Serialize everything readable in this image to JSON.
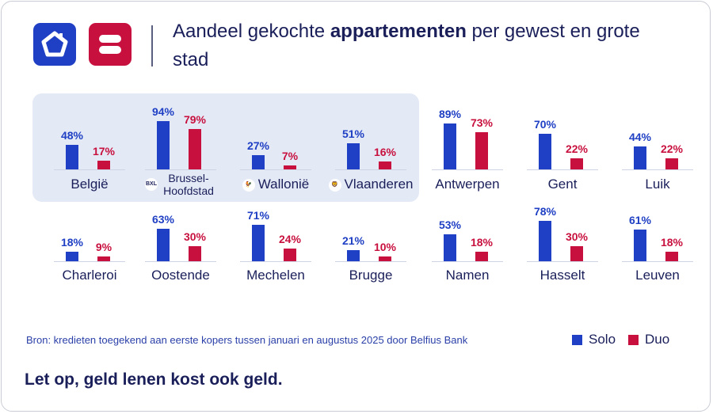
{
  "header": {
    "title_pre": "Aandeel gekochte ",
    "title_bold": "appartementen",
    "title_post": " per gewest en grote stad"
  },
  "colors": {
    "solo": "#1f3fc4",
    "duo": "#c8103e",
    "text": "#1a1f5a",
    "highlight": "#e3e9f5"
  },
  "chart_data": {
    "type": "bar",
    "title": "Aandeel gekochte appartementen per gewest en grote stad",
    "unit": "%",
    "highlighted": [
      "België",
      "Brussel-Hoofdstad",
      "Wallonië",
      "Vlaanderen"
    ],
    "categories": [
      "België",
      "Brussel-Hoofdstad",
      "Wallonië",
      "Vlaanderen",
      "Antwerpen",
      "Gent",
      "Luik",
      "Charleroi",
      "Oostende",
      "Mechelen",
      "Brugge",
      "Namen",
      "Hasselt",
      "Leuven"
    ],
    "category_icons": [
      "",
      "bxl-icon",
      "walloon-rooster-icon",
      "flemish-lion-icon",
      "",
      "",
      "",
      "",
      "",
      "",
      "",
      "",
      "",
      ""
    ],
    "series": [
      {
        "name": "Solo",
        "values": [
          48,
          94,
          27,
          51,
          89,
          70,
          44,
          18,
          63,
          71,
          21,
          53,
          78,
          61
        ]
      },
      {
        "name": "Duo",
        "values": [
          17,
          79,
          7,
          16,
          73,
          22,
          22,
          9,
          30,
          24,
          10,
          18,
          30,
          18
        ]
      }
    ],
    "legend": [
      "Solo",
      "Duo"
    ],
    "legend_position": "bottom-right",
    "ylim": [
      0,
      100
    ]
  },
  "icon_text": {
    "bxl": "BXL"
  },
  "source": "Bron: kredieten toegekend aan eerste kopers tussen januari en augustus 2025 door Belfius Bank",
  "footer": "Let op, geld lenen kost ook geld."
}
